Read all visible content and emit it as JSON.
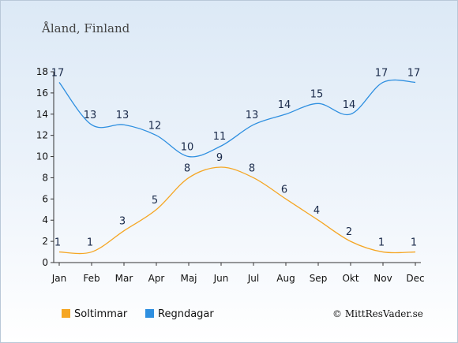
{
  "chart_data": {
    "type": "line",
    "title": "Åland, Finland",
    "categories": [
      "Jan",
      "Feb",
      "Mar",
      "Apr",
      "Maj",
      "Jun",
      "Jul",
      "Aug",
      "Sep",
      "Okt",
      "Nov",
      "Dec"
    ],
    "series": [
      {
        "name": "Soltimmar",
        "color": "#f5a623",
        "values": [
          1,
          1,
          3,
          5,
          8,
          9,
          8,
          6,
          4,
          2,
          1,
          1
        ]
      },
      {
        "name": "Regndagar",
        "color": "#2e8fe0",
        "values": [
          17,
          13,
          13,
          12,
          10,
          11,
          13,
          14,
          15,
          14,
          17,
          17
        ]
      }
    ],
    "yticks": [
      0,
      2,
      4,
      6,
      8,
      10,
      12,
      14,
      16,
      18
    ],
    "ylim": [
      0,
      18
    ],
    "grid": false,
    "legend": "bottom-left"
  },
  "credit": "© MittResVader.se"
}
